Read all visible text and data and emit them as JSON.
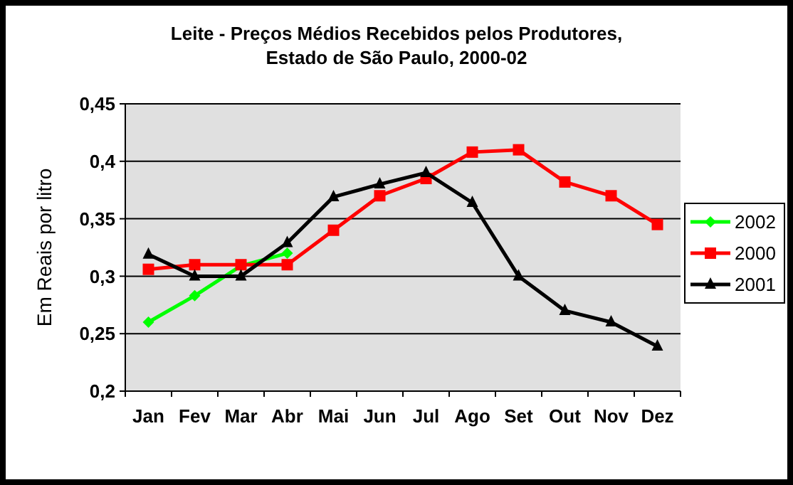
{
  "chart_data": {
    "type": "line",
    "title": "Leite - Preços Médios Recebidos pelos Produtores,\nEstado de São Paulo, 2000-02",
    "ylabel": "Em Reais por litro",
    "categories": [
      "Jan",
      "Fev",
      "Mar",
      "Abr",
      "Mai",
      "Jun",
      "Jul",
      "Ago",
      "Set",
      "Out",
      "Nov",
      "Dez"
    ],
    "series": [
      {
        "name": "2002",
        "color": "#00ff00",
        "marker": "diamond",
        "values": [
          0.26,
          0.283,
          0.309,
          0.32,
          null,
          null,
          null,
          null,
          null,
          null,
          null,
          null
        ]
      },
      {
        "name": "2000",
        "color": "#ff0000",
        "marker": "square",
        "values": [
          0.306,
          0.31,
          0.31,
          0.31,
          0.34,
          0.37,
          0.385,
          0.408,
          0.41,
          0.382,
          0.37,
          0.345
        ]
      },
      {
        "name": "2001",
        "color": "#000000",
        "marker": "triangle",
        "values": [
          0.319,
          0.3,
          0.3,
          0.329,
          0.369,
          0.38,
          0.39,
          0.364,
          0.3,
          0.27,
          0.26,
          0.239
        ]
      }
    ],
    "ylim": [
      0.2,
      0.45
    ],
    "yticks": [
      {
        "value": 0.2,
        "label": "0,2"
      },
      {
        "value": 0.25,
        "label": "0,25"
      },
      {
        "value": 0.3,
        "label": "0,3"
      },
      {
        "value": 0.35,
        "label": "0,35"
      },
      {
        "value": 0.4,
        "label": "0,4"
      },
      {
        "value": 0.45,
        "label": "0,45"
      }
    ],
    "grid": "y",
    "legend": "right",
    "line_style": "solid"
  }
}
